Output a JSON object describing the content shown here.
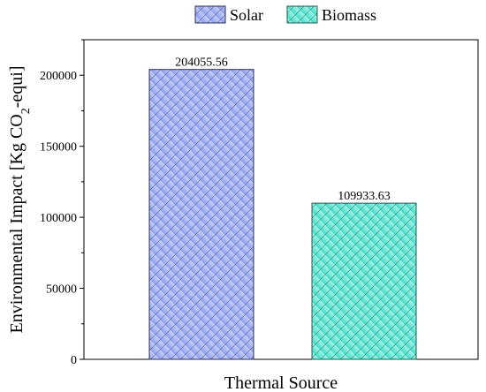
{
  "chart_data": {
    "type": "bar",
    "categories": [
      "",
      ""
    ],
    "series": [
      {
        "name": "Solar",
        "values": [
          204055.56,
          null
        ],
        "color": "#aeb8f2",
        "hatch": "diagonal"
      },
      {
        "name": "Biomass",
        "values": [
          null,
          109933.63
        ],
        "color": "#7ae8d8",
        "hatch": "diagonal"
      }
    ],
    "data_labels": [
      "204055.56",
      "109933.63"
    ],
    "xlabel": "Thermal Source",
    "ylabel": {
      "prefix": "Environmental Impact [Kg CO",
      "subscript": "2",
      "suffix": "-equi]"
    },
    "ylim": [
      0,
      225000
    ],
    "yticks": [
      0,
      50000,
      100000,
      150000,
      200000
    ],
    "ytick_labels": [
      "0",
      "50000",
      "100000",
      "150000",
      "200000"
    ],
    "grid": false,
    "legend_position": "top-center"
  }
}
